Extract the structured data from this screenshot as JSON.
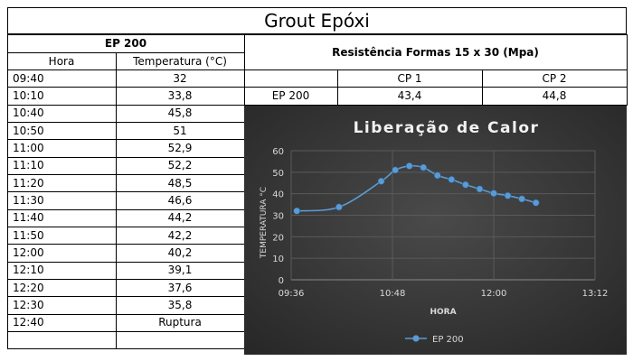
{
  "sheet": {
    "title": "Grout Epóxi",
    "left_header": "EP 200",
    "col_hora": "Hora",
    "col_temp": "Temperatura (°C)",
    "resist_header": "Resistência Formas 15 x 30 (Mpa)",
    "cp1": "CP 1",
    "cp2": "CP 2",
    "resist_row": {
      "label": "EP 200",
      "cp1": "43,4",
      "cp2": "44,8"
    },
    "rows": [
      {
        "hora": "09:40",
        "temp": "32"
      },
      {
        "hora": "10:10",
        "temp": "33,8"
      },
      {
        "hora": "10:40",
        "temp": "45,8"
      },
      {
        "hora": "10:50",
        "temp": "51"
      },
      {
        "hora": "11:00",
        "temp": "52,9"
      },
      {
        "hora": "11:10",
        "temp": "52,2"
      },
      {
        "hora": "11:20",
        "temp": "48,5"
      },
      {
        "hora": "11:30",
        "temp": "46,6"
      },
      {
        "hora": "11:40",
        "temp": "44,2"
      },
      {
        "hora": "11:50",
        "temp": "42,2"
      },
      {
        "hora": "12:00",
        "temp": "40,2"
      },
      {
        "hora": "12:10",
        "temp": "39,1"
      },
      {
        "hora": "12:20",
        "temp": "37,6"
      },
      {
        "hora": "12:30",
        "temp": "35,8"
      },
      {
        "hora": "12:40",
        "temp": "Ruptura"
      }
    ]
  },
  "chart_data": {
    "type": "line",
    "title": "Liberação de Calor",
    "xlabel": "HORA",
    "ylabel": "TEMPERATURA °C",
    "x_ticks": [
      "09:36",
      "10:48",
      "12:00",
      "13:12"
    ],
    "y_ticks": [
      "0",
      "10",
      "20",
      "30",
      "40",
      "50",
      "60"
    ],
    "xlim": [
      "09:36",
      "13:12"
    ],
    "ylim": [
      0,
      60
    ],
    "grid": true,
    "legend_position": "bottom",
    "series": [
      {
        "name": "EP 200",
        "color": "#5b9bd5",
        "x": [
          "09:40",
          "10:10",
          "10:40",
          "10:50",
          "11:00",
          "11:10",
          "11:20",
          "11:30",
          "11:40",
          "11:50",
          "12:00",
          "12:10",
          "12:20",
          "12:30"
        ],
        "y": [
          32,
          33.8,
          45.8,
          51,
          52.9,
          52.2,
          48.5,
          46.6,
          44.2,
          42.2,
          40.2,
          39.1,
          37.6,
          35.8
        ]
      }
    ],
    "background": "#3a3a3a"
  }
}
